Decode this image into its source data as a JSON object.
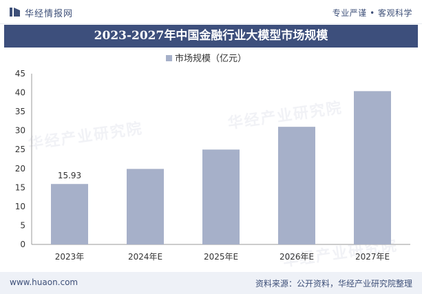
{
  "header": {
    "brand": "华经情报网",
    "slogan": "专业严谨 • 客观科学"
  },
  "title": "2023-2027年中国金融行业大模型市场规模",
  "watermark_text": "华经产业研究院",
  "chart_data": {
    "type": "bar",
    "categories": [
      "2023年",
      "2024年E",
      "2025年E",
      "2026年E",
      "2027年E"
    ],
    "series": [
      {
        "name": "市场规模（亿元）",
        "values": [
          15.93,
          19.9,
          25.0,
          31.0,
          40.4
        ]
      }
    ],
    "data_labels": [
      "15.93",
      null,
      null,
      null,
      null
    ],
    "yticks": [
      0,
      5,
      10,
      15,
      20,
      25,
      30,
      35,
      40,
      45
    ],
    "ylim": [
      0,
      45
    ],
    "legend_position": "top-center",
    "grid": false,
    "bar_color": "#a6b0c9"
  },
  "footer": {
    "url": "www.huaon.com",
    "source": "资料来源：公开资料，华经产业研究院整理"
  }
}
